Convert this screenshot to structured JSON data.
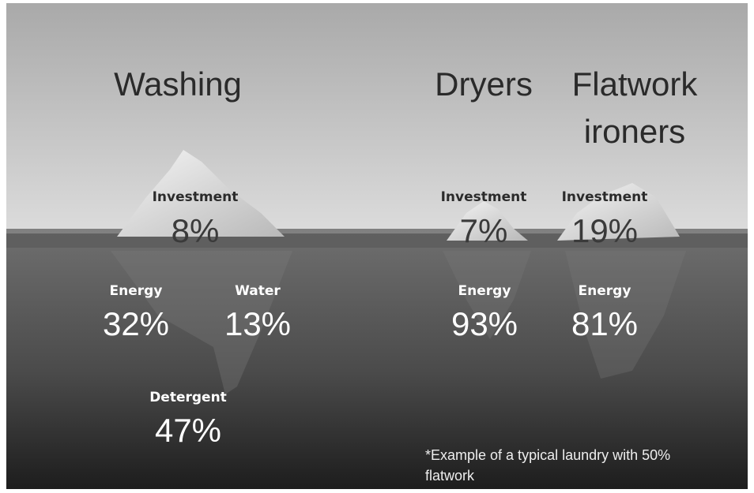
{
  "washing": {
    "title": "Washing",
    "investment": {
      "label": "Investment",
      "value": "8%"
    },
    "energy": {
      "label": "Energy",
      "value": "32%"
    },
    "water": {
      "label": "Water",
      "value": "13%"
    },
    "detergent": {
      "label": "Detergent",
      "value": "47%"
    }
  },
  "dryers": {
    "title": "Dryers",
    "investment": {
      "label": "Investment",
      "value": "7%"
    },
    "energy": {
      "label": "Energy",
      "value": "93%"
    }
  },
  "flatwork": {
    "title": [
      "Flatwork",
      "ironers"
    ],
    "investment": {
      "label": "Investment",
      "value": "19%"
    },
    "energy": {
      "label": "Energy",
      "value": "81%"
    }
  },
  "note": [
    "*Example of a typical laundry with 50%",
    "flatwork"
  ]
}
